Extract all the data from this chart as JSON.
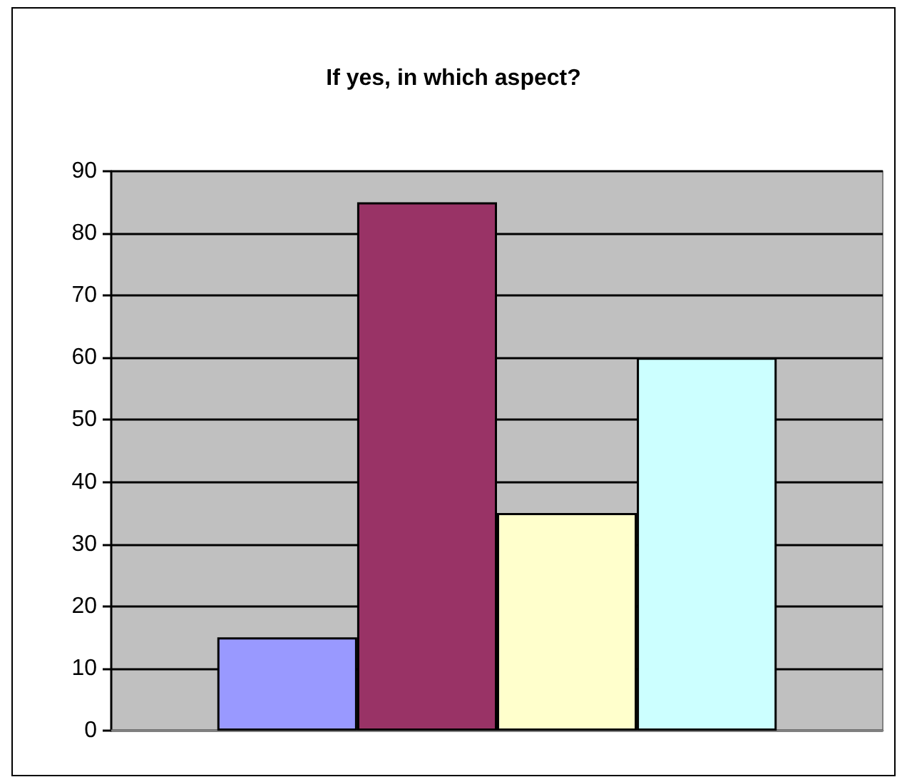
{
  "chart_data": {
    "type": "bar",
    "title": "If yes, in which aspect?",
    "categories": [
      null
    ],
    "series": [
      {
        "color": "#9999ff",
        "values": [
          15
        ]
      },
      {
        "color": "#993366",
        "values": [
          85
        ]
      },
      {
        "color": "#ffffcc",
        "values": [
          35
        ]
      },
      {
        "color": "#ccffff",
        "values": [
          60
        ]
      }
    ],
    "ylim": [
      0,
      90
    ],
    "yticks": [
      0,
      10,
      20,
      30,
      40,
      50,
      60,
      70,
      80,
      90
    ],
    "grid": "y"
  }
}
